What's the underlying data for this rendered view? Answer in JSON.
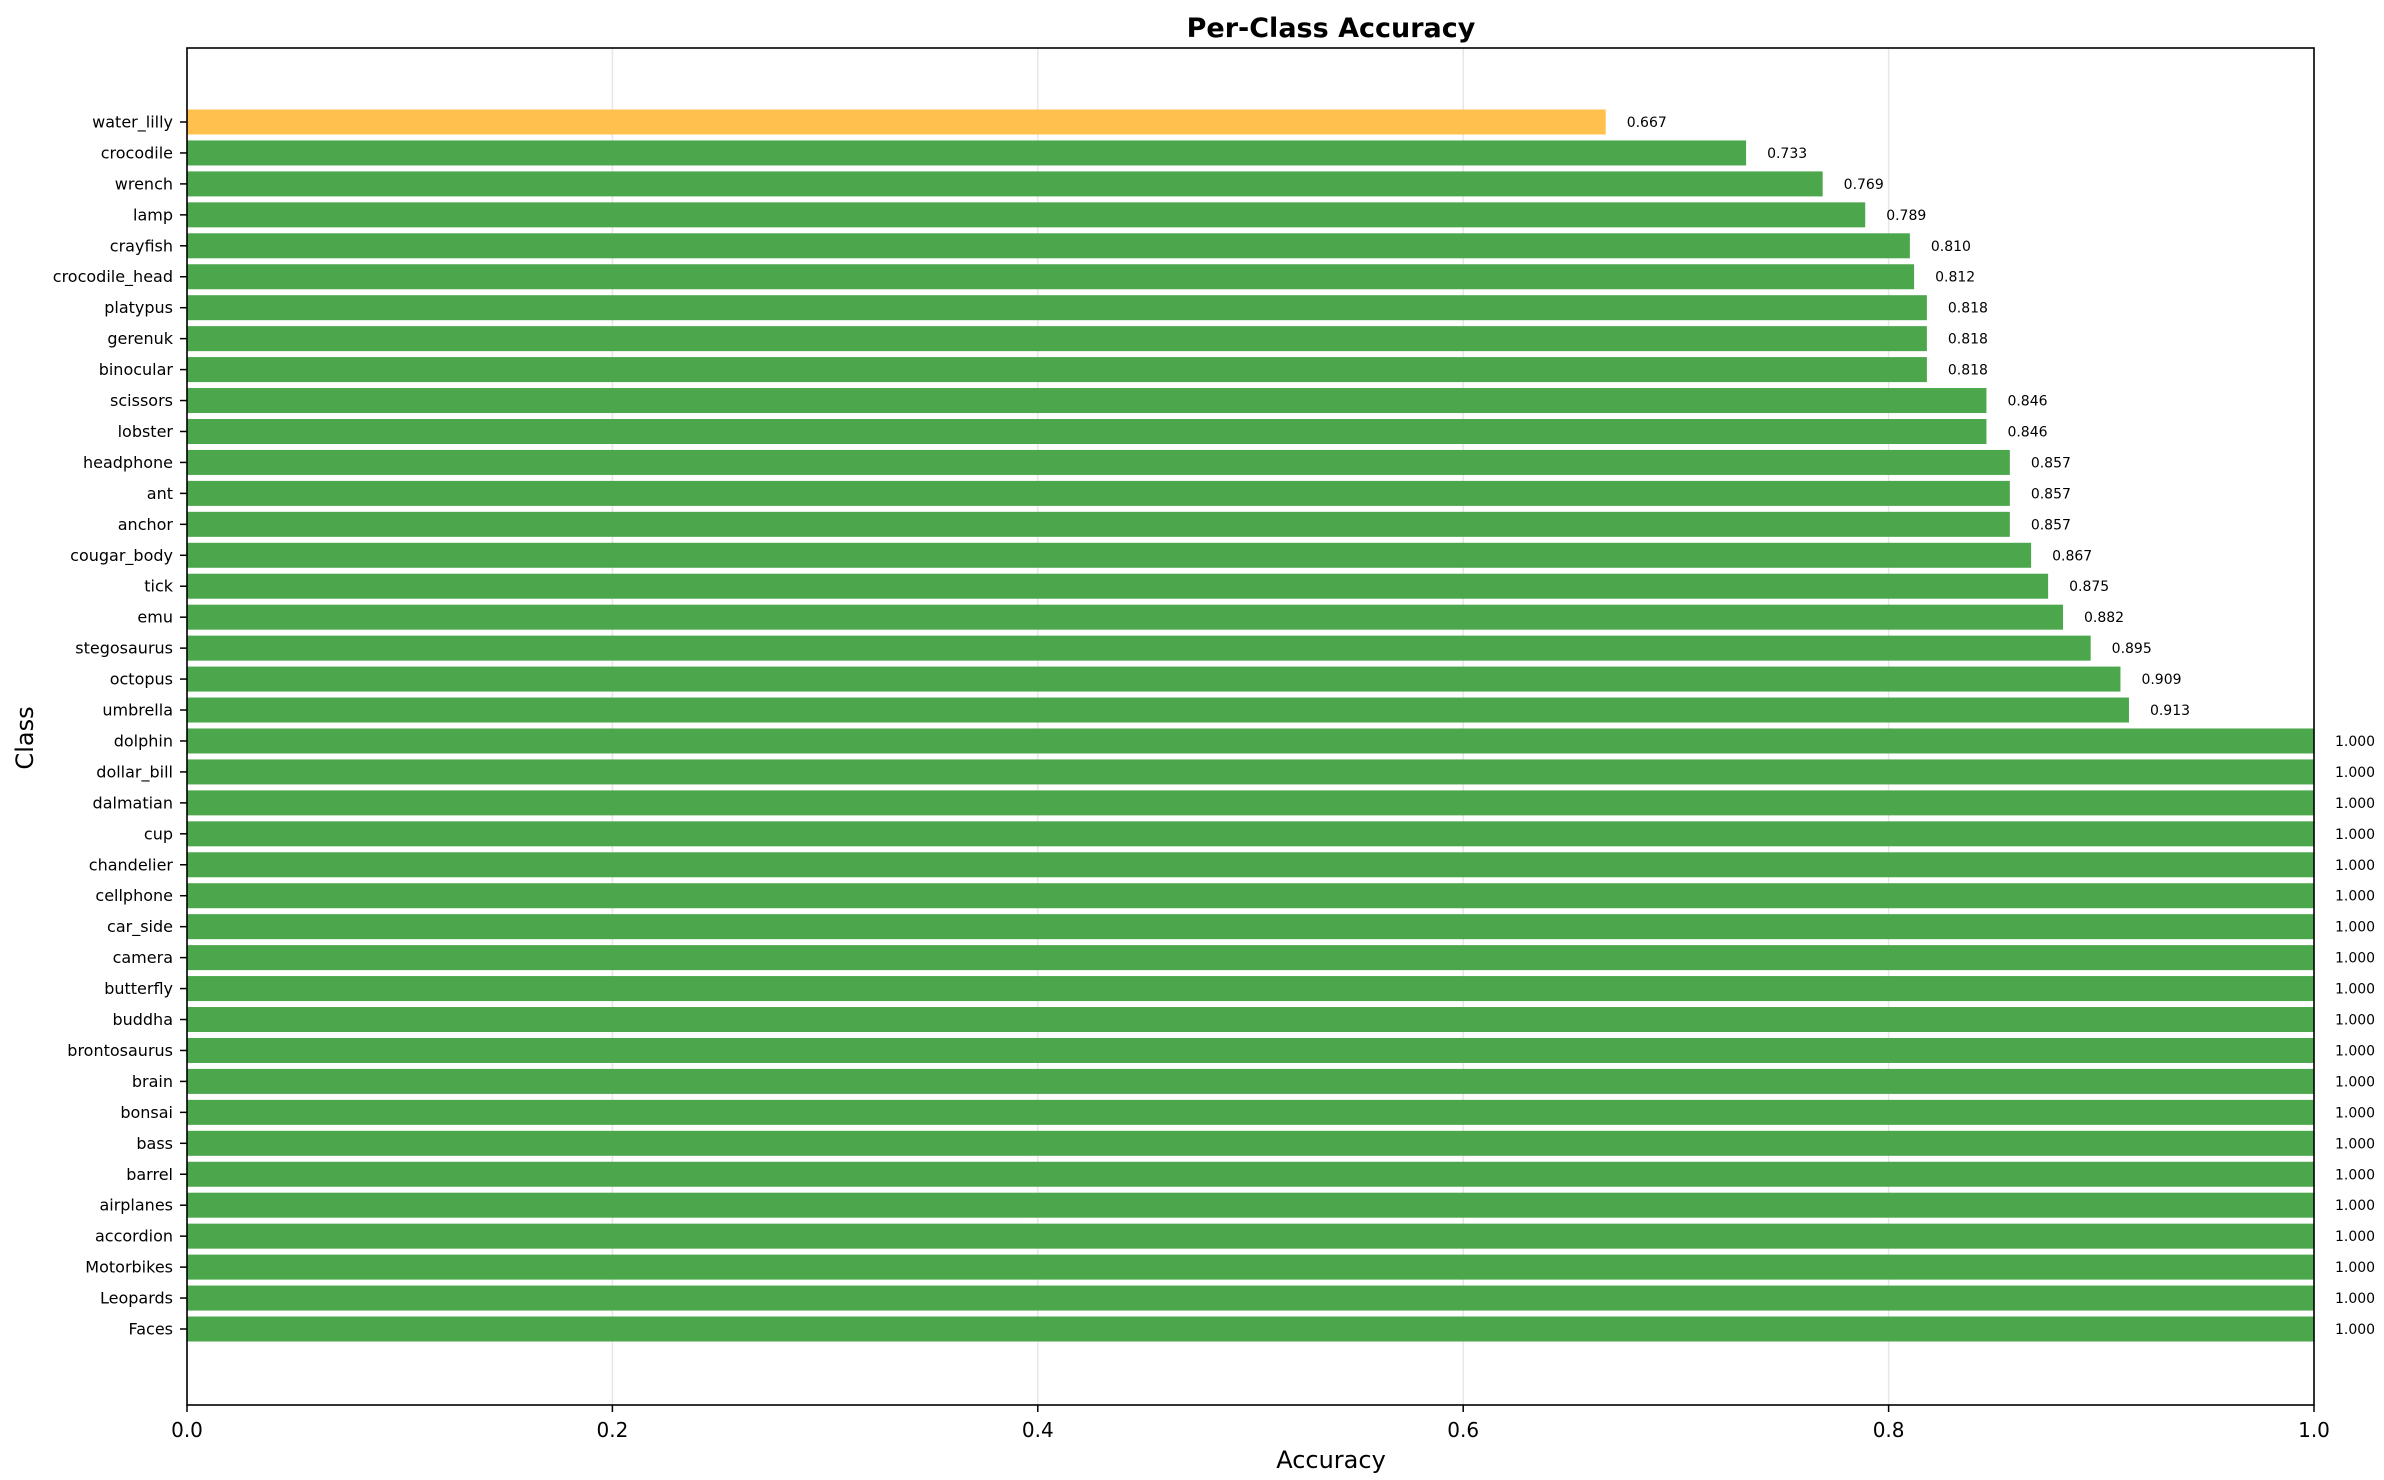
{
  "chart_data": {
    "type": "bar",
    "orientation": "horizontal",
    "title": "Per-Class Accuracy",
    "xlabel": "Accuracy",
    "ylabel": "Class",
    "xlim": [
      0,
      1.0
    ],
    "x_ticks": [
      "0.0",
      "0.2",
      "0.4",
      "0.6",
      "0.8",
      "1.0"
    ],
    "grid": "vertical",
    "colors": {
      "normal": "#4ca64c",
      "highlight": "#ffc04d"
    },
    "categories": [
      "water_lilly",
      "crocodile",
      "wrench",
      "lamp",
      "crayfish",
      "crocodile_head",
      "platypus",
      "gerenuk",
      "binocular",
      "scissors",
      "lobster",
      "headphone",
      "ant",
      "anchor",
      "cougar_body",
      "tick",
      "emu",
      "stegosaurus",
      "octopus",
      "umbrella",
      "dolphin",
      "dollar_bill",
      "dalmatian",
      "cup",
      "chandelier",
      "cellphone",
      "car_side",
      "camera",
      "butterfly",
      "buddha",
      "brontosaurus",
      "brain",
      "bonsai",
      "bass",
      "barrel",
      "airplanes",
      "accordion",
      "Motorbikes",
      "Leopards",
      "Faces"
    ],
    "values": [
      0.667,
      0.733,
      0.769,
      0.789,
      0.81,
      0.812,
      0.818,
      0.818,
      0.818,
      0.846,
      0.846,
      0.857,
      0.857,
      0.857,
      0.867,
      0.875,
      0.882,
      0.895,
      0.909,
      0.913,
      1.0,
      1.0,
      1.0,
      1.0,
      1.0,
      1.0,
      1.0,
      1.0,
      1.0,
      1.0,
      1.0,
      1.0,
      1.0,
      1.0,
      1.0,
      1.0,
      1.0,
      1.0,
      1.0,
      1.0
    ],
    "value_labels": [
      "0.667",
      "0.733",
      "0.769",
      "0.789",
      "0.810",
      "0.812",
      "0.818",
      "0.818",
      "0.818",
      "0.846",
      "0.846",
      "0.857",
      "0.857",
      "0.857",
      "0.867",
      "0.875",
      "0.882",
      "0.895",
      "0.909",
      "0.913",
      "1.000",
      "1.000",
      "1.000",
      "1.000",
      "1.000",
      "1.000",
      "1.000",
      "1.000",
      "1.000",
      "1.000",
      "1.000",
      "1.000",
      "1.000",
      "1.000",
      "1.000",
      "1.000",
      "1.000",
      "1.000",
      "1.000",
      "1.000"
    ],
    "highlight": [
      "water_lilly"
    ]
  }
}
